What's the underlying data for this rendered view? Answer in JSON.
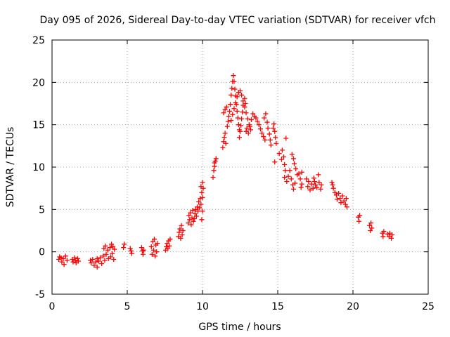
{
  "chart_data": {
    "type": "scatter",
    "title": "Day 095 of 2026, Sidereal Day-to-day VTEC variation (SDTVAR) for receiver vfch",
    "xlabel": "GPS time / hours",
    "ylabel": "SDTVAR / TECUs",
    "xlim": [
      0,
      25
    ],
    "ylim": [
      -5,
      25
    ],
    "xticks": [
      0,
      5,
      10,
      15,
      20,
      25
    ],
    "yticks": [
      -5,
      0,
      5,
      10,
      15,
      20,
      25
    ],
    "grid": true,
    "marker": "+",
    "color": "#ff0000",
    "series": [
      {
        "name": "SDTVAR",
        "points": [
          [
            0.45,
            -0.9
          ],
          [
            0.5,
            -0.6
          ],
          [
            0.6,
            -0.7
          ],
          [
            0.65,
            -1.2
          ],
          [
            0.75,
            -0.8
          ],
          [
            0.8,
            -1.5
          ],
          [
            0.9,
            -0.5
          ],
          [
            1.0,
            -1.0
          ],
          [
            1.35,
            -0.9
          ],
          [
            1.4,
            -1.2
          ],
          [
            1.5,
            -0.7
          ],
          [
            1.55,
            -1.0
          ],
          [
            1.6,
            -1.3
          ],
          [
            1.7,
            -0.8
          ],
          [
            1.75,
            -1.1
          ],
          [
            2.55,
            -1.0
          ],
          [
            2.6,
            -1.3
          ],
          [
            2.7,
            -0.9
          ],
          [
            2.8,
            -1.6
          ],
          [
            2.9,
            -1.2
          ],
          [
            3.0,
            -0.8
          ],
          [
            3.0,
            -1.8
          ],
          [
            3.1,
            -1.1
          ],
          [
            3.2,
            -0.7
          ],
          [
            3.3,
            -1.4
          ],
          [
            3.4,
            -0.5
          ],
          [
            3.45,
            0.4
          ],
          [
            3.5,
            -1.0
          ],
          [
            3.55,
            0.7
          ],
          [
            3.6,
            -0.3
          ],
          [
            3.7,
            0.2
          ],
          [
            3.75,
            -0.8
          ],
          [
            3.85,
            0.5
          ],
          [
            3.9,
            -0.6
          ],
          [
            3.95,
            0.9
          ],
          [
            4.0,
            -0.2
          ],
          [
            4.05,
            0.6
          ],
          [
            4.1,
            -0.9
          ],
          [
            4.15,
            0.3
          ],
          [
            4.75,
            0.5
          ],
          [
            4.8,
            0.9
          ],
          [
            5.2,
            0.4
          ],
          [
            5.25,
            0.1
          ],
          [
            5.3,
            -0.2
          ],
          [
            5.95,
            0.5
          ],
          [
            6.0,
            0.1
          ],
          [
            6.05,
            -0.3
          ],
          [
            6.1,
            0.2
          ],
          [
            6.6,
            0.6
          ],
          [
            6.65,
            -0.3
          ],
          [
            6.7,
            1.2
          ],
          [
            6.75,
            0.2
          ],
          [
            6.8,
            1.5
          ],
          [
            6.85,
            -0.5
          ],
          [
            6.9,
            0.8
          ],
          [
            6.95,
            0.0
          ],
          [
            7.0,
            1.0
          ],
          [
            7.55,
            0.2
          ],
          [
            7.6,
            0.6
          ],
          [
            7.65,
            1.0
          ],
          [
            7.7,
            0.4
          ],
          [
            7.75,
            1.3
          ],
          [
            7.8,
            0.7
          ],
          [
            7.85,
            1.5
          ],
          [
            8.4,
            1.8
          ],
          [
            8.45,
            2.3
          ],
          [
            8.5,
            2.7
          ],
          [
            8.55,
            1.6
          ],
          [
            8.6,
            3.1
          ],
          [
            8.65,
            2.0
          ],
          [
            8.7,
            2.5
          ],
          [
            9.05,
            3.4
          ],
          [
            9.1,
            4.3
          ],
          [
            9.15,
            3.8
          ],
          [
            9.2,
            4.6
          ],
          [
            9.25,
            3.2
          ],
          [
            9.3,
            4.0
          ],
          [
            9.35,
            4.9
          ],
          [
            9.4,
            3.6
          ],
          [
            9.45,
            3.9
          ],
          [
            9.5,
            4.5
          ],
          [
            9.55,
            5.0
          ],
          [
            9.6,
            4.2
          ],
          [
            9.65,
            5.3
          ],
          [
            9.7,
            4.8
          ],
          [
            9.75,
            5.9
          ],
          [
            9.8,
            5.2
          ],
          [
            9.85,
            6.3
          ],
          [
            9.9,
            5.6
          ],
          [
            9.95,
            7.0
          ],
          [
            10.0,
            6.4
          ],
          [
            10.05,
            7.5
          ],
          [
            9.9,
            7.7
          ],
          [
            10.0,
            8.2
          ],
          [
            10.0,
            4.8
          ],
          [
            9.95,
            3.8
          ],
          [
            10.7,
            8.8
          ],
          [
            10.75,
            9.6
          ],
          [
            10.8,
            10.1
          ],
          [
            10.85,
            10.7
          ],
          [
            10.9,
            11.0
          ],
          [
            10.8,
            10.5
          ],
          [
            11.35,
            12.3
          ],
          [
            11.4,
            13.0
          ],
          [
            11.45,
            13.5
          ],
          [
            11.5,
            14.0
          ],
          [
            11.55,
            12.8
          ],
          [
            11.4,
            16.4
          ],
          [
            11.5,
            16.8
          ],
          [
            11.6,
            17.1
          ],
          [
            11.65,
            14.8
          ],
          [
            11.7,
            15.4
          ],
          [
            11.75,
            16.0
          ],
          [
            11.8,
            16.6
          ],
          [
            11.85,
            17.4
          ],
          [
            11.9,
            18.5
          ],
          [
            11.95,
            19.3
          ],
          [
            12.0,
            20.1
          ],
          [
            12.05,
            20.8
          ],
          [
            12.1,
            20.1
          ],
          [
            12.15,
            19.2
          ],
          [
            12.2,
            18.4
          ],
          [
            12.25,
            17.4
          ],
          [
            12.3,
            16.6
          ],
          [
            12.35,
            15.8
          ],
          [
            12.4,
            15.0
          ],
          [
            12.45,
            14.4
          ],
          [
            11.9,
            15.5
          ],
          [
            12.0,
            16.2
          ],
          [
            12.1,
            16.9
          ],
          [
            12.2,
            17.6
          ],
          [
            12.3,
            18.3
          ],
          [
            12.4,
            18.8
          ],
          [
            12.5,
            19.0
          ],
          [
            12.6,
            18.5
          ],
          [
            12.7,
            17.8
          ],
          [
            12.8,
            17.1
          ],
          [
            12.9,
            16.4
          ],
          [
            13.0,
            15.7
          ],
          [
            13.1,
            15.0
          ],
          [
            13.2,
            14.4
          ],
          [
            12.45,
            13.5
          ],
          [
            12.5,
            14.2
          ],
          [
            12.55,
            14.9
          ],
          [
            12.6,
            15.7
          ],
          [
            12.65,
            16.5
          ],
          [
            12.7,
            17.3
          ],
          [
            12.8,
            18.1
          ],
          [
            12.85,
            17.5
          ],
          [
            12.9,
            14.2
          ],
          [
            12.95,
            14.6
          ],
          [
            13.05,
            14.0
          ],
          [
            13.15,
            14.8
          ],
          [
            13.25,
            15.6
          ],
          [
            13.35,
            16.3
          ],
          [
            13.45,
            16.0
          ],
          [
            13.55,
            15.8
          ],
          [
            13.65,
            15.4
          ],
          [
            13.75,
            15.0
          ],
          [
            13.85,
            14.5
          ],
          [
            13.95,
            14.0
          ],
          [
            14.05,
            13.6
          ],
          [
            14.15,
            13.2
          ],
          [
            14.1,
            15.8
          ],
          [
            14.2,
            16.3
          ],
          [
            14.3,
            15.3
          ],
          [
            14.35,
            14.6
          ],
          [
            14.45,
            13.9
          ],
          [
            14.5,
            13.2
          ],
          [
            14.55,
            12.6
          ],
          [
            14.7,
            14.6
          ],
          [
            14.75,
            15.1
          ],
          [
            14.8,
            14.2
          ],
          [
            14.8,
            10.6
          ],
          [
            14.85,
            13.5
          ],
          [
            14.9,
            12.8
          ],
          [
            15.1,
            11.6
          ],
          [
            15.25,
            10.9
          ],
          [
            15.3,
            12.0
          ],
          [
            15.4,
            11.2
          ],
          [
            15.45,
            10.3
          ],
          [
            15.5,
            9.6
          ],
          [
            15.55,
            13.4
          ],
          [
            15.45,
            8.8
          ],
          [
            15.6,
            8.3
          ],
          [
            15.7,
            8.9
          ],
          [
            15.8,
            9.6
          ],
          [
            15.9,
            8.6
          ],
          [
            16.0,
            7.9
          ],
          [
            16.05,
            7.4
          ],
          [
            16.15,
            8.1
          ],
          [
            15.95,
            11.5
          ],
          [
            16.05,
            11.0
          ],
          [
            16.1,
            10.4
          ],
          [
            16.2,
            9.8
          ],
          [
            16.3,
            9.1
          ],
          [
            16.4,
            9.2
          ],
          [
            16.5,
            8.6
          ],
          [
            16.55,
            7.6
          ],
          [
            16.6,
            8.0
          ],
          [
            16.6,
            9.4
          ],
          [
            16.9,
            8.6
          ],
          [
            17.0,
            7.7
          ],
          [
            17.05,
            8.3
          ],
          [
            17.15,
            7.3
          ],
          [
            17.25,
            8.0
          ],
          [
            17.35,
            7.5
          ],
          [
            17.4,
            8.7
          ],
          [
            17.45,
            8.3
          ],
          [
            17.5,
            7.9
          ],
          [
            17.6,
            7.6
          ],
          [
            17.7,
            9.1
          ],
          [
            17.75,
            8.2
          ],
          [
            17.85,
            7.4
          ],
          [
            17.9,
            7.9
          ],
          [
            18.6,
            8.2
          ],
          [
            18.65,
            7.9
          ],
          [
            18.7,
            7.5
          ],
          [
            18.8,
            7.0
          ],
          [
            18.9,
            6.7
          ],
          [
            18.95,
            6.2
          ],
          [
            19.05,
            6.9
          ],
          [
            19.15,
            6.3
          ],
          [
            19.2,
            5.8
          ],
          [
            19.3,
            6.6
          ],
          [
            19.4,
            6.0
          ],
          [
            19.5,
            5.6
          ],
          [
            19.55,
            6.3
          ],
          [
            19.6,
            5.3
          ],
          [
            20.35,
            4.1
          ],
          [
            20.4,
            3.6
          ],
          [
            20.45,
            4.3
          ],
          [
            21.1,
            3.1
          ],
          [
            21.15,
            2.5
          ],
          [
            21.2,
            3.4
          ],
          [
            21.25,
            2.8
          ],
          [
            21.95,
            2.2
          ],
          [
            22.0,
            1.8
          ],
          [
            22.05,
            2.4
          ],
          [
            22.3,
            2.1
          ],
          [
            22.4,
            1.8
          ],
          [
            22.45,
            2.2
          ],
          [
            22.55,
            1.6
          ],
          [
            22.6,
            2.0
          ]
        ]
      }
    ]
  }
}
